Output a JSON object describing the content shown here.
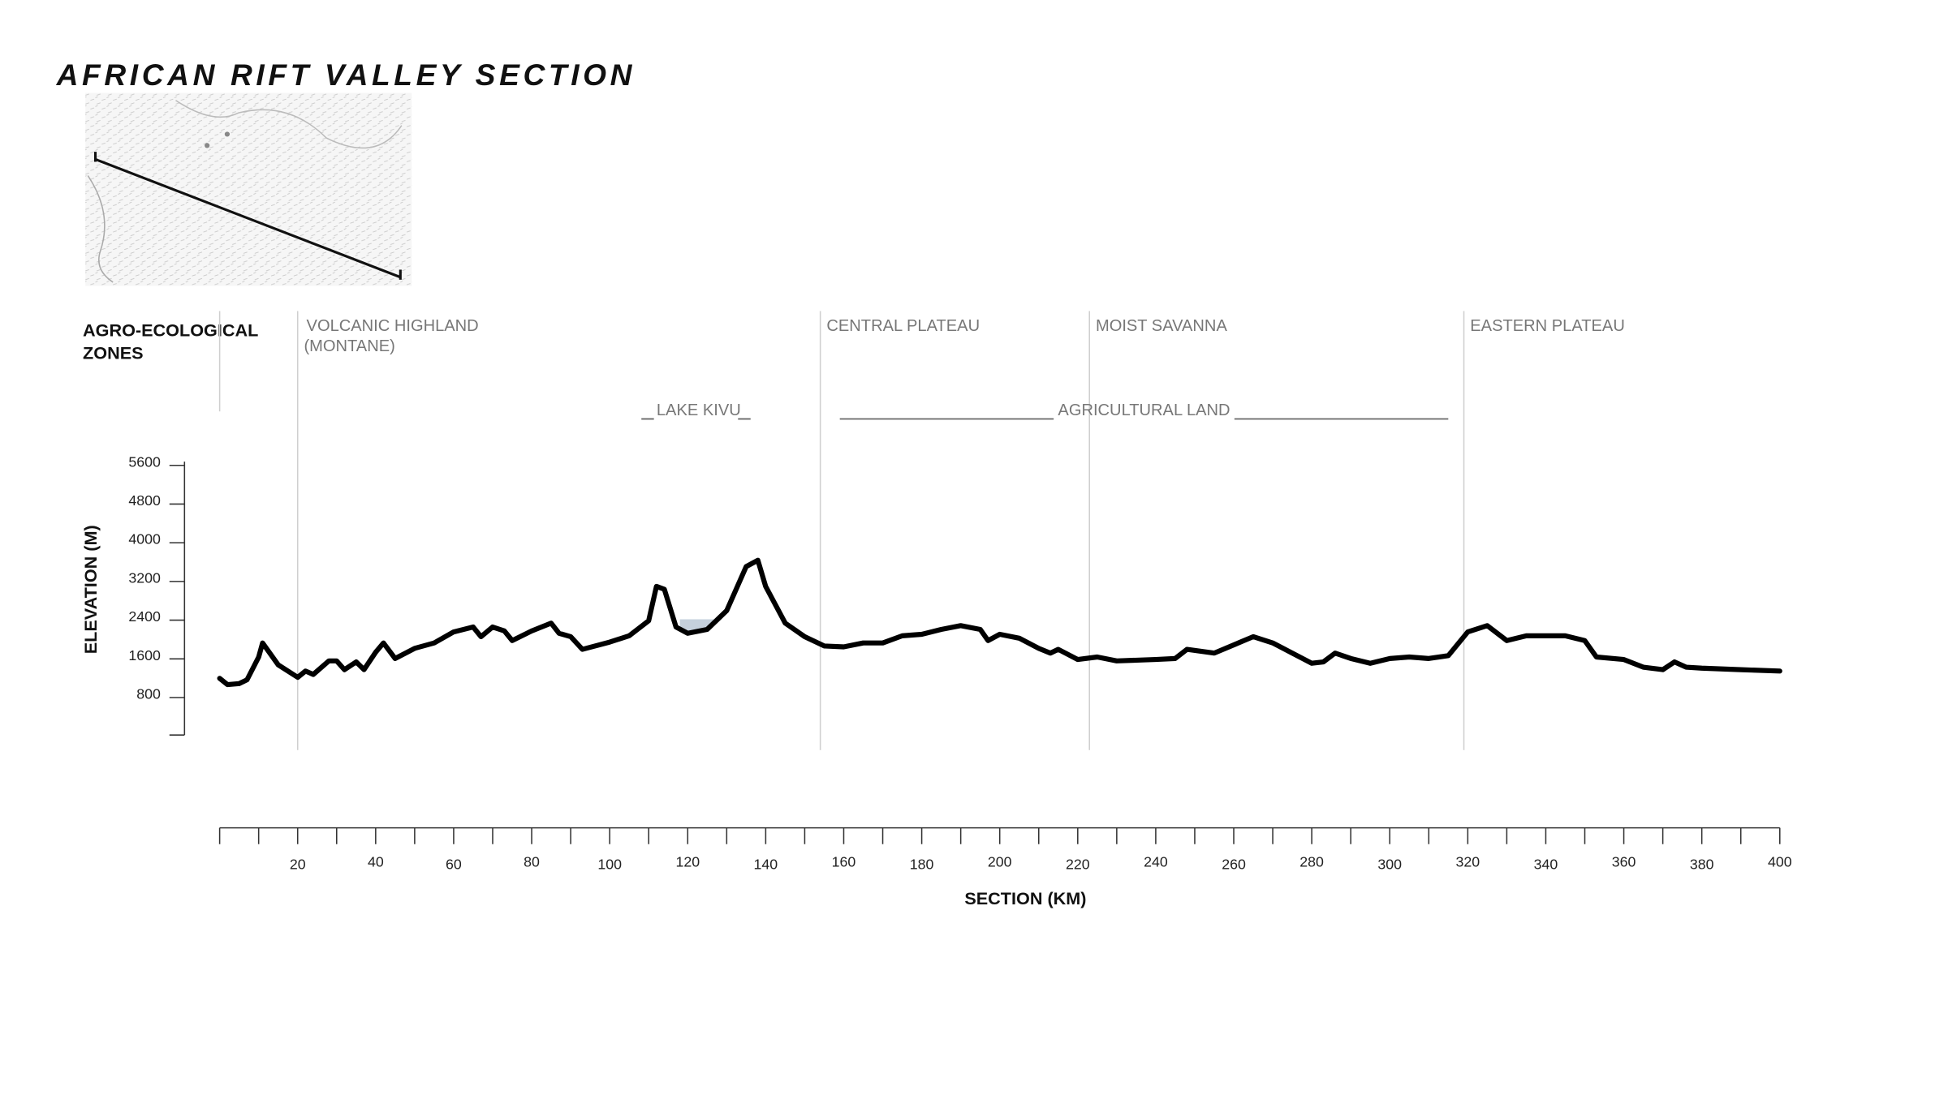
{
  "chart_data": {
    "type": "line",
    "title": "AFRICAN RIFT VALLEY SECTION",
    "zones_heading": [
      "AGRO-ECOLOGICAL",
      "ZONES"
    ],
    "zone_boundaries": [
      0,
      20,
      154,
      223,
      319
    ],
    "zone_labels": [
      null,
      [
        "VOLCANIC HIGHLAND",
        "(MONTANE)"
      ],
      [
        "CENTRAL PLATEAU"
      ],
      [
        "MOIST SAVANNA"
      ],
      [
        "EASTERN PLATEAU"
      ]
    ],
    "lake": {
      "label": "LAKE KIVU",
      "x": [
        118,
        127
      ],
      "elevation": 2340
    },
    "land": {
      "label": "AGRICULTURAL LAND",
      "x": [
        159,
        315
      ]
    },
    "x_label": "SECTION (KM)",
    "y_label": "ELEVATION (M)",
    "x": [
      0,
      2,
      5,
      7,
      10,
      11,
      15,
      20,
      22,
      24,
      28,
      30,
      32,
      35,
      37,
      40,
      42,
      45,
      50,
      55,
      60,
      65,
      67,
      70,
      73,
      75,
      80,
      85,
      87,
      90,
      93,
      100,
      105,
      110,
      112,
      114,
      117,
      120,
      125,
      130,
      135,
      138,
      140,
      145,
      150,
      155,
      160,
      165,
      170,
      175,
      180,
      185,
      190,
      195,
      197,
      200,
      205,
      210,
      213,
      215,
      220,
      225,
      230,
      240,
      245,
      248,
      255,
      265,
      270,
      275,
      280,
      283,
      286,
      290,
      295,
      300,
      305,
      310,
      315,
      320,
      325,
      330,
      335,
      340,
      345,
      350,
      353,
      360,
      365,
      370,
      373,
      376,
      380,
      390,
      400
    ],
    "series": [
      {
        "name": "Elevation",
        "color": "#000000",
        "values": [
          1120,
          990,
          1010,
          1090,
          1560,
          1850,
          1400,
          1140,
          1270,
          1200,
          1480,
          1480,
          1300,
          1460,
          1300,
          1660,
          1850,
          1530,
          1740,
          1850,
          2080,
          2180,
          1980,
          2180,
          2100,
          1900,
          2100,
          2260,
          2050,
          1980,
          1720,
          1870,
          2000,
          2310,
          3020,
          2960,
          2180,
          2050,
          2130,
          2520,
          3430,
          3560,
          3020,
          2260,
          1980,
          1790,
          1770,
          1850,
          1850,
          2000,
          2030,
          2130,
          2210,
          2130,
          1900,
          2030,
          1950,
          1740,
          1640,
          1720,
          1510,
          1560,
          1480,
          1510,
          1530,
          1720,
          1640,
          1980,
          1850,
          1640,
          1430,
          1460,
          1640,
          1530,
          1430,
          1530,
          1560,
          1530,
          1590,
          2080,
          2210,
          1900,
          2000,
          2000,
          2000,
          1900,
          1560,
          1510,
          1350,
          1300,
          1460,
          1350,
          1330,
          1300,
          1270
        ]
      }
    ],
    "xlim": [
      0,
      400
    ],
    "ylim": [
      0,
      5600
    ],
    "xticks": [
      20,
      40,
      60,
      80,
      100,
      120,
      140,
      160,
      180,
      200,
      220,
      240,
      260,
      280,
      300,
      320,
      340,
      360,
      380,
      400
    ],
    "x_minor_ticks": [
      0,
      10,
      20,
      30,
      40,
      50,
      60,
      70,
      80,
      90,
      100,
      110,
      120,
      130,
      140,
      150,
      160,
      170,
      180,
      190,
      200,
      210,
      220,
      230,
      240,
      250,
      260,
      270,
      280,
      290,
      300,
      310,
      320,
      330,
      340,
      350,
      360,
      370,
      380,
      390,
      400
    ],
    "yticks": [
      800,
      1600,
      2400,
      3200,
      4000,
      4800,
      5600
    ],
    "lake_color": "#c5d0dc"
  }
}
